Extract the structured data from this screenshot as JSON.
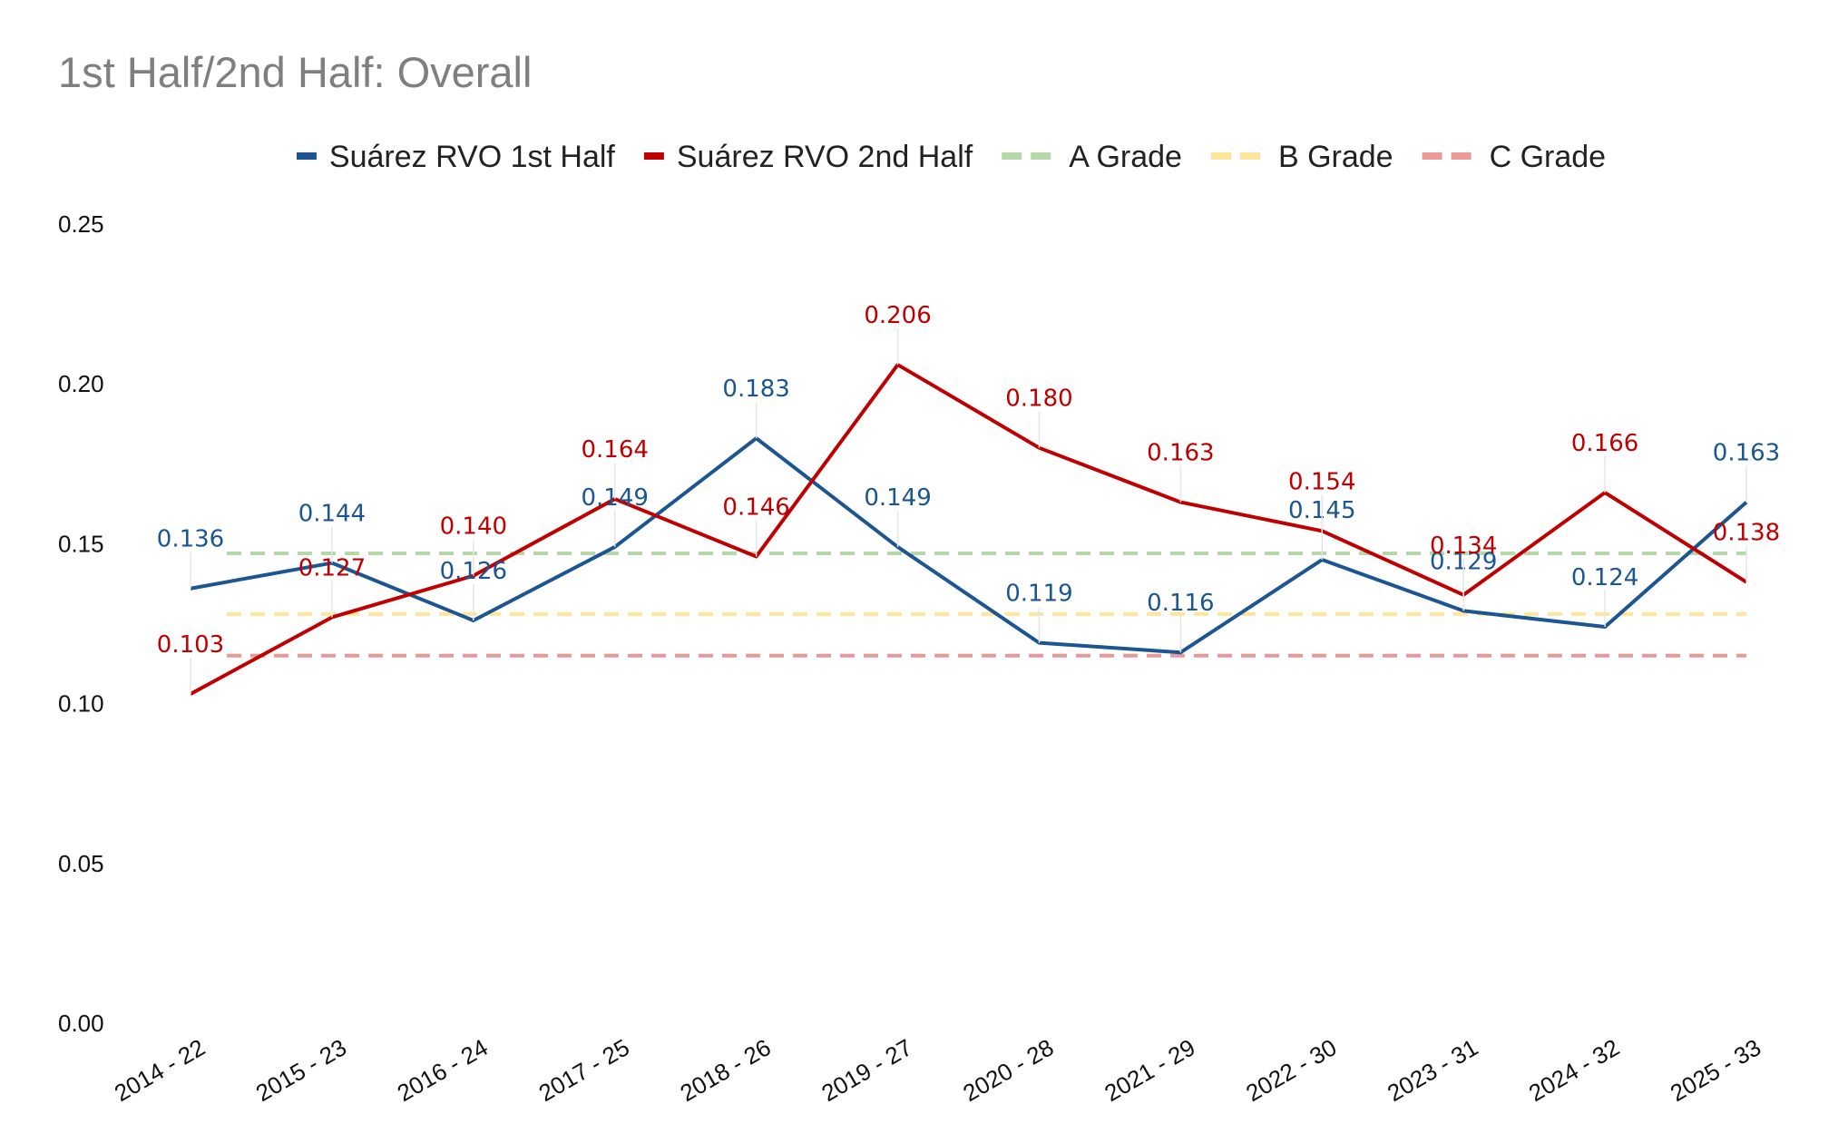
{
  "chart_data": {
    "type": "line",
    "title": "1st Half/2nd Half: Overall",
    "xlabel": "",
    "ylabel": "",
    "categories": [
      "2014 - 22",
      "2015 - 23",
      "2016 - 24",
      "2017 - 25",
      "2018 - 26",
      "2019 - 27",
      "2020 - 28",
      "2021 - 29",
      "2022 - 30",
      "2023 - 31",
      "2024 - 32",
      "2025 - 33"
    ],
    "ylim": [
      0,
      0.25
    ],
    "yticks": [
      0,
      0.05,
      0.1,
      0.15,
      0.2,
      0.25
    ],
    "ytick_labels": [
      "0.00",
      "0.05",
      "0.10",
      "0.15",
      "0.20",
      "0.25"
    ],
    "grid": false,
    "legend_position": "top-center",
    "series": [
      {
        "name": "Suárez RVO 1st Half",
        "color": "#1b5592",
        "style": "solid",
        "values": [
          0.136,
          0.144,
          0.126,
          0.149,
          0.183,
          0.149,
          0.119,
          0.116,
          0.145,
          0.129,
          0.124,
          0.163
        ],
        "labels": [
          "0.136",
          "0.144",
          "0.126",
          "0.149",
          "0.183",
          "0.149",
          "0.119",
          "0.116",
          "0.145",
          "0.129",
          "0.124",
          "0.163"
        ]
      },
      {
        "name": "Suárez RVO 2nd Half",
        "color": "#c00000",
        "style": "solid",
        "values": [
          0.103,
          0.127,
          0.14,
          0.164,
          0.146,
          0.206,
          0.18,
          0.163,
          0.154,
          0.134,
          0.166,
          0.138
        ],
        "labels": [
          "0.103",
          "0.127",
          "0.140",
          "0.164",
          "0.146",
          "0.206",
          "0.180",
          "0.163",
          "0.154",
          "0.134",
          "0.166",
          "0.138"
        ]
      },
      {
        "name": "A Grade",
        "color": "#b6d7a8",
        "style": "dashed",
        "values": [
          0.147,
          0.147,
          0.147,
          0.147,
          0.147,
          0.147,
          0.147,
          0.147,
          0.147,
          0.147,
          0.147,
          0.147
        ]
      },
      {
        "name": "B Grade",
        "color": "#ffe599",
        "style": "dashed",
        "values": [
          0.128,
          0.128,
          0.128,
          0.128,
          0.128,
          0.128,
          0.128,
          0.128,
          0.128,
          0.128,
          0.128,
          0.128
        ]
      },
      {
        "name": "C Grade",
        "color": "#ea9999",
        "style": "dashed",
        "values": [
          0.115,
          0.115,
          0.115,
          0.115,
          0.115,
          0.115,
          0.115,
          0.115,
          0.115,
          0.115,
          0.115,
          0.115
        ]
      }
    ]
  }
}
